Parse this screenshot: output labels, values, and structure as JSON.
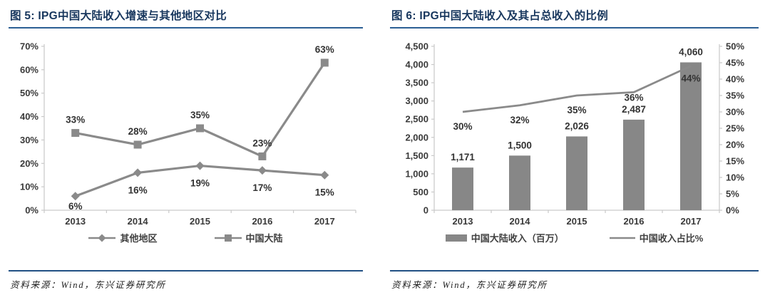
{
  "colors": {
    "title_navy": "#17365D",
    "title_rule": "#2B5F94",
    "footer_rule": "#215084",
    "series_gray": "#8A8A8A",
    "bar_gray": "#878787",
    "axis_gray": "#C9C9C9",
    "label_dark": "#333333"
  },
  "panels": [
    {
      "title": "图 5: IPG中国大陆收入增速与其他地区对比",
      "source": "资料来源：Wind，东兴证券研究所"
    },
    {
      "title": "图 6: IPG中国大陆收入及其占总收入的比例",
      "source": "资料来源：Wind，东兴证券研究所"
    }
  ],
  "chart_data": [
    {
      "type": "line",
      "title": "IPG中国大陆收入增速与其他地区对比",
      "categories": [
        "2013",
        "2014",
        "2015",
        "2016",
        "2017"
      ],
      "series": [
        {
          "id": "other-regions",
          "name": "其他地区",
          "marker": "diamond",
          "label_position": "below",
          "values": [
            6,
            16,
            19,
            17,
            15
          ],
          "labels": [
            "6%",
            "16%",
            "19%",
            "17%",
            "15%"
          ]
        },
        {
          "id": "mainland-china",
          "name": "中国大陆",
          "marker": "square",
          "label_position": "above",
          "values": [
            33,
            28,
            35,
            23,
            63
          ],
          "labels": [
            "33%",
            "28%",
            "35%",
            "23%",
            "63%"
          ]
        }
      ],
      "ylim": [
        0,
        70
      ],
      "y_ticks": [
        "0%",
        "10%",
        "20%",
        "30%",
        "40%",
        "50%",
        "60%",
        "70%"
      ],
      "grid": false,
      "legend_position": "bottom"
    },
    {
      "type": "combo-bar-line",
      "title": "IPG中国大陆收入及其占总收入的比例",
      "categories": [
        "2013",
        "2014",
        "2015",
        "2016",
        "2017"
      ],
      "bar_series": {
        "id": "mainland-revenue",
        "name": "中国大陆收入（百万）",
        "axis": "left",
        "values": [
          1171,
          1500,
          2026,
          2487,
          4060
        ],
        "labels": [
          "1,171",
          "1,500",
          "2,026",
          "2,487",
          "4,060"
        ]
      },
      "line_series": {
        "id": "china-revenue-share",
        "name": "中国收入占比%",
        "axis": "right",
        "values": [
          30,
          32,
          35,
          36,
          44
        ],
        "labels": [
          "30%",
          "32%",
          "35%",
          "36%",
          "44%"
        ],
        "label_offsets": [
          25,
          25,
          25,
          12,
          22
        ]
      },
      "left_ylim": [
        0,
        4500
      ],
      "left_y_ticks": [
        "0",
        "500",
        "1,000",
        "1,500",
        "2,000",
        "2,500",
        "3,000",
        "3,500",
        "4,000",
        "4,500"
      ],
      "right_ylim": [
        0,
        50
      ],
      "right_y_ticks": [
        "0%",
        "5%",
        "10%",
        "15%",
        "20%",
        "25%",
        "30%",
        "35%",
        "40%",
        "45%",
        "50%"
      ],
      "grid": false,
      "legend_position": "bottom"
    }
  ]
}
